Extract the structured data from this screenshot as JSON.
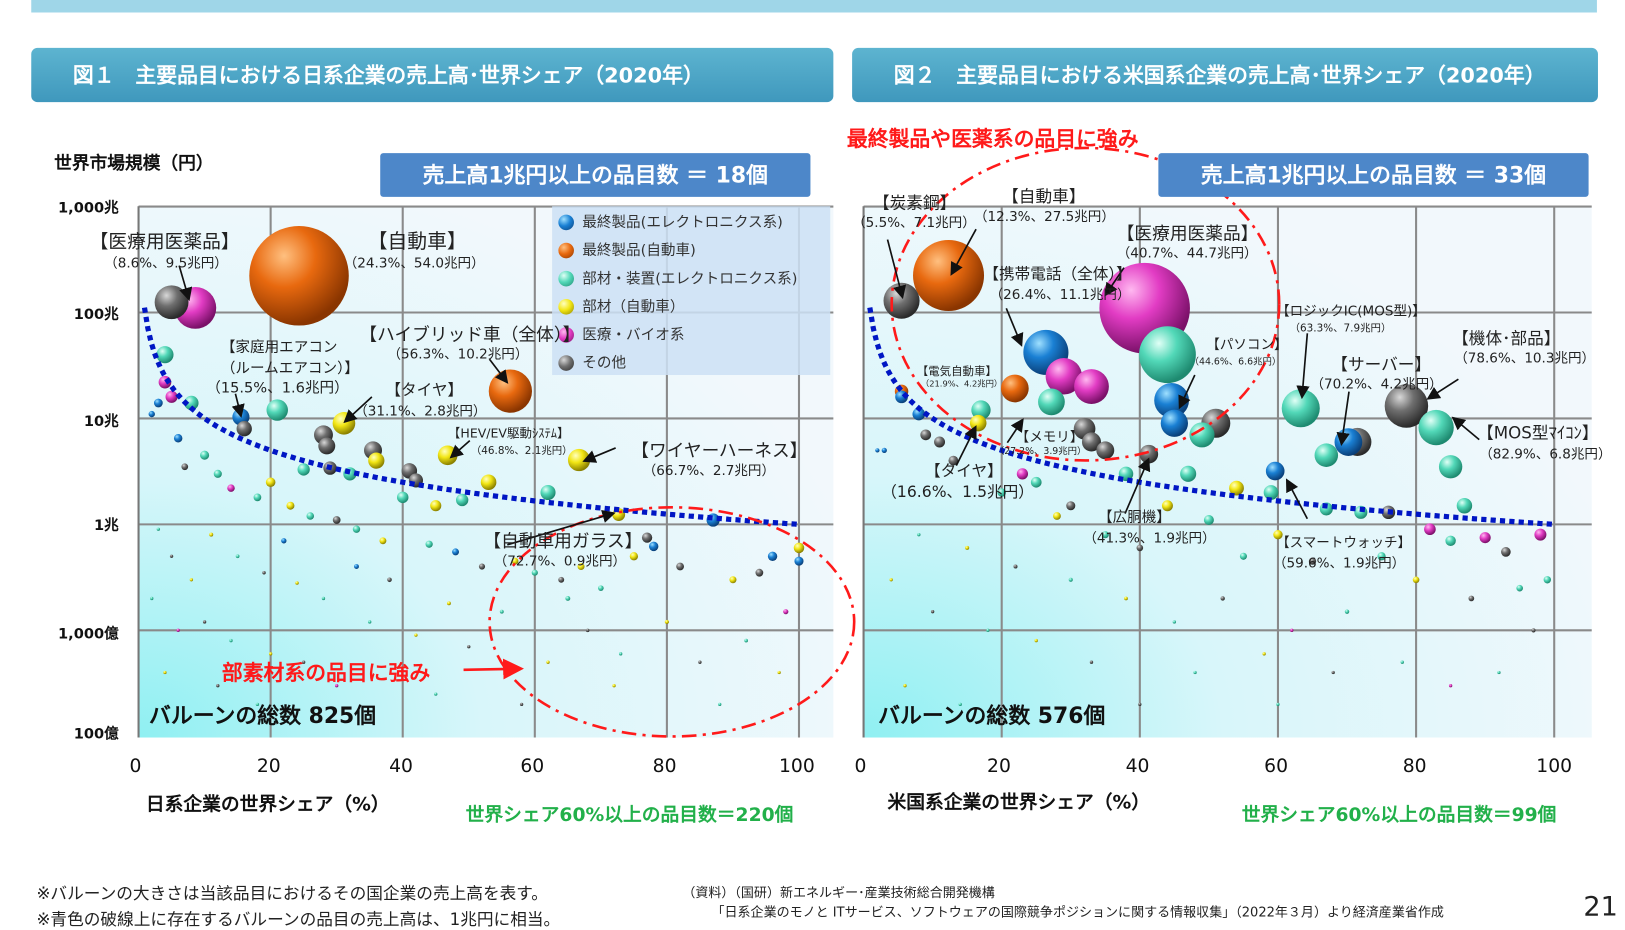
{
  "figure1": {
    "title": "図１　主要品目における日系企業の売上高･世界シェア（2020年）",
    "count_box": "売上高1兆円以上の品目数 ＝ 18個",
    "balloon_total": "バルーンの総数 825個",
    "share60": "世界シェア60%以上の品目数＝220個",
    "annotation": "部素材系の品目に強み"
  },
  "figure2": {
    "title": "図２　主要品目における米国系企業の売上高･世界シェア（2020年）",
    "count_box": "売上高1兆円以上の品目数 ＝ 33個",
    "balloon_total": "バルーンの総数 576個",
    "share60": "世界シェア60%以上の品目数＝99個",
    "annotation": "最終製品や医薬系の品目に強み"
  },
  "legend": [
    {
      "label": "最終製品(エレクトロニクス系)",
      "color": "#1a80d4"
    },
    {
      "label": "最終製品(自動車)",
      "color": "#e8690f"
    },
    {
      "label": "部材・装置(エレクトロニクス系)",
      "color": "#52d8b8"
    },
    {
      "label": "部材（自動車）",
      "color": "#f2e614"
    },
    {
      "label": "医療・バイオ系",
      "color": "#e23cc4"
    },
    {
      "label": "その他",
      "color": "#6f6f6f"
    }
  ],
  "footer": {
    "note1": "※バルーンの大きさは当該品目におけるその国企業の売上高を表す。",
    "note2": "※青色の破線上に存在するバルーンの品目の売上高は、1兆円に相当。",
    "source1": "（資料）（国研）新エネルギー･産業技術総合開発機構",
    "source2": "「日系企業のモノと ITサービス、ソフトウェアの国際競争ポジションに関する情報収集」（2022年３月）より経済産業省作成",
    "page": "21"
  },
  "chart_data": [
    {
      "type": "scatter",
      "title": "図１　主要品目における日系企業の売上高･世界シェア（2020年）",
      "xlabel": "日系企業の世界シェア（%）",
      "ylabel": "世界市場規模（円）",
      "xlim": [
        0,
        105
      ],
      "ylim_trillion_yen": [
        0.01,
        1000
      ],
      "yscale": "log",
      "xticks": [
        "0",
        "20",
        "40",
        "60",
        "80",
        "100"
      ],
      "yticks": [
        "1,000兆",
        "100兆",
        "10兆",
        "1兆",
        "1,000億",
        "100億"
      ],
      "grid": true,
      "legend_placement": "top-right",
      "reference_line": "売上高1兆円",
      "labeled": [
        {
          "name": "【医療用医薬品】",
          "value": "（8.6%、9.5兆円）",
          "share": 8.6,
          "sales": 9.5,
          "cat": 4
        },
        {
          "name": "【自動車】",
          "value": "（24.3%、54.0兆円）",
          "share": 24.3,
          "sales": 54.0,
          "cat": 1
        },
        {
          "name": "【ハイブリッド車（全体）】",
          "value": "（56.3%、10.2兆円）",
          "share": 56.3,
          "sales": 10.2,
          "cat": 1
        },
        {
          "name": "【家庭用エアコン",
          "name2": "（ルームエアコン）】",
          "value": "（15.5%、1.6兆円）",
          "share": 15.5,
          "sales": 1.6,
          "cat": 0
        },
        {
          "name": "【タイヤ】",
          "value": "（31.1%、2.8兆円）",
          "share": 31.1,
          "sales": 2.8,
          "cat": 3
        },
        {
          "name": "【HEV/EV駆動ｼｽﾃﾑ】",
          "value": "（46.8%、2.1兆円）",
          "share": 46.8,
          "sales": 2.1,
          "cat": 3
        },
        {
          "name": "【ワイヤーハーネス】",
          "value": "（66.7%、2.7兆円）",
          "share": 66.7,
          "sales": 2.7,
          "cat": 3
        },
        {
          "name": "【自動車用ガラス】",
          "value": "（72.7%、0.9兆円）",
          "share": 72.7,
          "sales": 0.9,
          "cat": 3
        }
      ],
      "points_share_market_cat": [
        [
          5,
          125,
          5
        ],
        [
          4,
          40,
          2
        ],
        [
          4,
          22,
          4
        ],
        [
          5,
          16,
          4
        ],
        [
          8,
          14,
          2
        ],
        [
          3,
          14,
          0
        ],
        [
          2,
          11,
          0
        ],
        [
          21,
          12,
          2
        ],
        [
          16,
          8,
          5
        ],
        [
          28,
          7,
          5
        ],
        [
          28.5,
          5.5,
          5
        ],
        [
          35.5,
          5,
          5
        ],
        [
          29,
          3.4,
          5
        ],
        [
          36,
          4,
          3
        ],
        [
          32,
          3,
          2
        ],
        [
          41,
          3.2,
          5
        ],
        [
          25,
          3.3,
          2
        ],
        [
          42,
          2.6,
          5
        ],
        [
          53,
          2.5,
          3
        ],
        [
          62,
          2,
          2
        ],
        [
          49,
          1.7,
          2
        ],
        [
          45,
          1.5,
          3
        ],
        [
          40,
          1.8,
          2
        ],
        [
          77,
          0.75,
          5
        ],
        [
          87,
          1.1,
          0
        ],
        [
          78,
          0.62,
          0
        ],
        [
          100,
          0.6,
          3
        ],
        [
          100,
          0.45,
          0
        ],
        [
          96,
          0.5,
          0
        ],
        [
          14,
          2.2,
          4
        ],
        [
          10,
          4.5,
          2
        ],
        [
          6,
          6.5,
          0
        ],
        [
          7,
          3.5,
          5
        ],
        [
          12,
          3,
          2
        ],
        [
          18,
          1.8,
          2
        ],
        [
          20,
          2.5,
          3
        ],
        [
          23,
          1.5,
          3
        ],
        [
          26,
          1.2,
          2
        ],
        [
          30,
          1.1,
          5
        ],
        [
          33,
          0.9,
          2
        ],
        [
          37,
          0.7,
          3
        ],
        [
          44,
          0.65,
          2
        ],
        [
          48,
          0.55,
          0
        ],
        [
          52,
          0.4,
          5
        ],
        [
          57,
          0.45,
          3
        ],
        [
          60,
          0.35,
          2
        ],
        [
          64,
          0.3,
          5
        ],
        [
          67,
          0.4,
          3
        ],
        [
          70,
          0.25,
          2
        ],
        [
          75,
          0.5,
          3
        ],
        [
          82,
          0.4,
          5
        ],
        [
          90,
          0.3,
          3
        ],
        [
          94,
          0.35,
          5
        ],
        [
          98,
          0.15,
          4
        ],
        [
          11,
          0.8,
          3
        ],
        [
          15,
          0.5,
          2
        ],
        [
          19,
          0.35,
          5
        ],
        [
          24,
          0.28,
          3
        ],
        [
          28,
          0.2,
          2
        ],
        [
          3,
          0.9,
          2
        ],
        [
          5,
          0.5,
          5
        ],
        [
          8,
          0.3,
          3
        ],
        [
          2,
          0.2,
          2
        ],
        [
          6,
          0.1,
          4
        ],
        [
          10,
          0.12,
          5
        ],
        [
          14,
          0.08,
          2
        ],
        [
          20,
          0.06,
          3
        ],
        [
          25,
          0.05,
          5
        ],
        [
          35,
          0.12,
          2
        ],
        [
          42,
          0.09,
          3
        ],
        [
          50,
          0.07,
          5
        ],
        [
          55,
          0.15,
          2
        ],
        [
          62,
          0.05,
          3
        ],
        [
          68,
          0.1,
          5
        ],
        [
          73,
          0.06,
          2
        ],
        [
          80,
          0.12,
          3
        ],
        [
          85,
          0.05,
          5
        ],
        [
          92,
          0.08,
          2
        ],
        [
          97,
          0.04,
          3
        ],
        [
          4,
          0.04,
          3
        ],
        [
          12,
          0.03,
          5
        ],
        [
          18,
          0.02,
          2
        ],
        [
          30,
          0.03,
          4
        ],
        [
          45,
          0.025,
          2
        ],
        [
          58,
          0.02,
          5
        ],
        [
          72,
          0.03,
          3
        ],
        [
          88,
          0.02,
          2
        ],
        [
          65,
          0.2,
          2
        ],
        [
          38,
          0.3,
          5
        ],
        [
          47,
          0.18,
          3
        ],
        [
          33,
          0.4,
          0
        ],
        [
          22,
          0.7,
          0
        ]
      ]
    },
    {
      "type": "scatter",
      "title": "図２　主要品目における米国系企業の売上高･世界シェア（2020年）",
      "xlabel": "米国系企業の世界シェア（%）",
      "ylabel": "世界市場規模（円）",
      "xlim": [
        0,
        105
      ],
      "ylim_trillion_yen": [
        0.01,
        1000
      ],
      "yscale": "log",
      "xticks": [
        "0",
        "20",
        "40",
        "60",
        "80",
        "100"
      ],
      "grid": true,
      "reference_line": "売上高1兆円",
      "labeled": [
        {
          "name": "【炭素鋼】",
          "value": "（5.5%、7.1兆円）",
          "share": 5.5,
          "sales": 7.1,
          "cat": 5
        },
        {
          "name": "【自動車】",
          "value": "（12.3%、27.5兆円）",
          "share": 12.3,
          "sales": 27.5,
          "cat": 1
        },
        {
          "name": "【医療用医薬品】",
          "value": "（40.7%、44.7兆円）",
          "share": 40.7,
          "sales": 44.7,
          "cat": 4
        },
        {
          "name": "【携帯電話（全体）】",
          "value": "（26.4%、11.1兆円）",
          "share": 26.4,
          "sales": 11.1,
          "cat": 0
        },
        {
          "name": "【電気自動車】",
          "value": "（21.9%、4.2兆円）",
          "share": 21.9,
          "sales": 4.2,
          "cat": 1
        },
        {
          "name": "【メモリ】",
          "value": "（27.2%、3.9兆円）",
          "share": 27.2,
          "sales": 3.9,
          "cat": 2
        },
        {
          "name": "【パソコン】",
          "value": "（44.6%、6.6兆円）",
          "share": 44.6,
          "sales": 6.6,
          "cat": 0
        },
        {
          "name": "【ロジックIC(MOS型)】",
          "value": "（63.3%、7.9兆円）",
          "share": 63.3,
          "sales": 7.9,
          "cat": 2
        },
        {
          "name": "【サーバー】",
          "value": "（70.2%、4.2兆円）",
          "share": 70.2,
          "sales": 4.2,
          "cat": 0
        },
        {
          "name": "【機体･部品】",
          "value": "（78.6%、10.3兆円）",
          "share": 78.6,
          "sales": 10.3,
          "cat": 5
        },
        {
          "name": "【MOS型ﾏｲｺﾝ】",
          "value": "（82.9%、6.8兆円）",
          "share": 82.9,
          "sales": 6.8,
          "cat": 2
        },
        {
          "name": "【タイヤ】",
          "value": "（16.6%、1.5兆円）",
          "share": 16.6,
          "sales": 1.5,
          "cat": 3
        },
        {
          "name": "【広胴機】",
          "value": "（41.3%、1.9兆円）",
          "share": 41.3,
          "sales": 1.9,
          "cat": 5
        },
        {
          "name": "【スマートウォッチ】",
          "value": "（59.6%、1.9兆円）",
          "share": 59.6,
          "sales": 1.9,
          "cat": 0
        }
      ],
      "points_share_market_cat": [
        [
          44,
          40,
          2
        ],
        [
          29,
          25,
          4
        ],
        [
          33,
          20,
          4
        ],
        [
          45,
          9,
          0
        ],
        [
          51,
          9,
          5
        ],
        [
          49,
          7,
          2
        ],
        [
          71.5,
          6,
          5
        ],
        [
          67,
          4.5,
          2
        ],
        [
          85,
          3.5,
          2
        ],
        [
          87,
          1.5,
          2
        ],
        [
          5.5,
          18,
          1
        ],
        [
          5.5,
          16,
          0
        ],
        [
          17,
          12,
          2
        ],
        [
          8,
          11,
          0
        ],
        [
          32,
          8,
          5
        ],
        [
          33,
          6,
          5
        ],
        [
          35,
          5,
          5
        ],
        [
          9,
          7,
          5
        ],
        [
          11,
          6,
          5
        ],
        [
          13,
          4,
          5
        ],
        [
          23,
          3,
          4
        ],
        [
          25,
          2.5,
          2
        ],
        [
          38,
          3,
          2
        ],
        [
          47,
          3,
          2
        ],
        [
          54,
          2.2,
          3
        ],
        [
          59,
          2.0,
          2
        ],
        [
          67,
          1.4,
          2
        ],
        [
          72,
          1.3,
          2
        ],
        [
          76,
          1.3,
          5
        ],
        [
          82,
          0.9,
          4
        ],
        [
          85,
          0.7,
          2
        ],
        [
          90,
          0.75,
          4
        ],
        [
          98,
          0.8,
          4
        ],
        [
          93,
          0.55,
          5
        ],
        [
          99,
          0.3,
          2
        ],
        [
          95,
          0.25,
          2
        ],
        [
          60,
          0.8,
          3
        ],
        [
          50,
          1.1,
          2
        ],
        [
          44,
          1.5,
          3
        ],
        [
          30,
          1.5,
          5
        ],
        [
          20,
          2,
          2
        ],
        [
          3,
          5,
          0
        ],
        [
          2,
          5,
          0
        ],
        [
          28,
          1.2,
          3
        ],
        [
          35,
          0.8,
          2
        ],
        [
          40,
          0.6,
          5
        ],
        [
          55,
          0.5,
          2
        ],
        [
          65,
          0.45,
          5
        ],
        [
          75,
          0.5,
          2
        ],
        [
          80,
          0.3,
          3
        ],
        [
          88,
          0.2,
          5
        ],
        [
          70,
          0.15,
          2
        ],
        [
          62,
          0.1,
          4
        ],
        [
          52,
          0.2,
          5
        ],
        [
          45,
          0.12,
          2
        ],
        [
          38,
          0.2,
          3
        ],
        [
          30,
          0.3,
          2
        ],
        [
          22,
          0.4,
          5
        ],
        [
          15,
          0.6,
          3
        ],
        [
          8,
          0.8,
          2
        ],
        [
          4,
          0.3,
          3
        ],
        [
          10,
          0.15,
          5
        ],
        [
          18,
          0.1,
          2
        ],
        [
          25,
          0.08,
          3
        ],
        [
          33,
          0.05,
          5
        ],
        [
          48,
          0.04,
          2
        ],
        [
          58,
          0.06,
          3
        ],
        [
          68,
          0.04,
          5
        ],
        [
          78,
          0.05,
          2
        ],
        [
          85,
          0.03,
          4
        ],
        [
          92,
          0.04,
          2
        ],
        [
          97,
          0.1,
          5
        ],
        [
          6,
          0.03,
          3
        ],
        [
          14,
          0.02,
          2
        ],
        [
          40,
          0.02,
          5
        ],
        [
          60,
          0.02,
          2
        ]
      ]
    }
  ]
}
